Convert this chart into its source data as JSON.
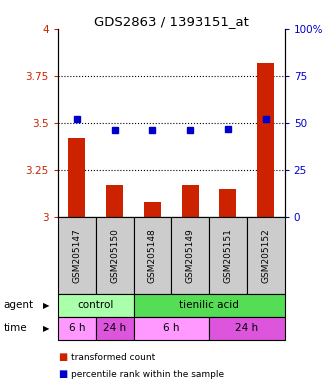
{
  "title": "GDS2863 / 1393151_at",
  "samples": [
    "GSM205147",
    "GSM205150",
    "GSM205148",
    "GSM205149",
    "GSM205151",
    "GSM205152"
  ],
  "bar_values": [
    3.42,
    3.17,
    3.08,
    3.17,
    3.15,
    3.82
  ],
  "percentile_values": [
    52,
    46,
    46,
    46,
    47,
    52
  ],
  "bar_color": "#cc2200",
  "percentile_color": "#0000cc",
  "ylim_left": [
    3.0,
    4.0
  ],
  "ylim_right": [
    0,
    100
  ],
  "yticks_left": [
    3.0,
    3.25,
    3.5,
    3.75,
    4.0
  ],
  "yticks_right": [
    0,
    25,
    50,
    75,
    100
  ],
  "ytick_labels_left": [
    "3",
    "3.25",
    "3.5",
    "3.75",
    "4"
  ],
  "ytick_labels_right": [
    "0",
    "25",
    "50",
    "75",
    "100%"
  ],
  "hlines": [
    3.25,
    3.5,
    3.75
  ],
  "agent_control_color": "#aaffaa",
  "agent_tienilic_color": "#55dd55",
  "time_6h_color": "#ff99ff",
  "time_24h_color": "#dd55dd",
  "sample_box_color": "#cccccc",
  "legend_red_label": "transformed count",
  "legend_blue_label": "percentile rank within the sample",
  "agent_row_label": "agent",
  "time_row_label": "time",
  "bar_width": 0.45
}
